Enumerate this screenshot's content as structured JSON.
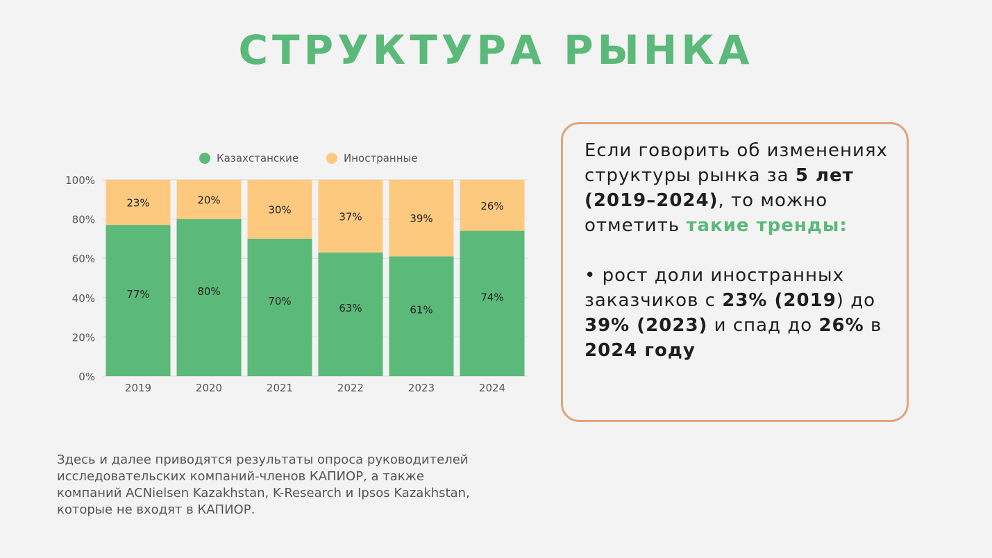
{
  "title": "СТРУКТУРА РЫНКА",
  "chart_data": {
    "type": "bar",
    "stacked": true,
    "categories": [
      "2019",
      "2020",
      "2021",
      "2022",
      "2023",
      "2024"
    ],
    "series": [
      {
        "name": "Казахстанские",
        "values": [
          77,
          80,
          70,
          63,
          61,
          74
        ],
        "color": "#5bb97a"
      },
      {
        "name": "Иностранные",
        "values": [
          23,
          20,
          30,
          37,
          39,
          26
        ],
        "color": "#fdc97f"
      }
    ],
    "data_labels": {
      "Казахстанские": [
        "77%",
        "80%",
        "70%",
        "63%",
        "61%",
        "74%"
      ],
      "Иностранные": [
        "23%",
        "20%",
        "30%",
        "37%",
        "39%",
        "26%"
      ]
    },
    "yticks": [
      "0%",
      "20%",
      "40%",
      "60%",
      "80%",
      "100%"
    ],
    "ylim": [
      0,
      100
    ],
    "legend_position": "top",
    "grid": true
  },
  "info": {
    "p1_a": "Если говорить об изменениях структуры рынка за ",
    "p1_b": "5 лет (2019–2024)",
    "p1_c": ", то можно отметить ",
    "p1_d": "такие тренды:",
    "p2_a": "• рост доли иностранных заказчиков с ",
    "p2_b": "23% (2019",
    "p2_c": ") до ",
    "p2_d": "39% (2023)",
    "p2_e": " и спад до ",
    "p2_f": "26%",
    "p2_g": " в ",
    "p2_h": "2024 году"
  },
  "footnote": [
    "Здесь и далее приводятся результаты опроса руководителей",
    "исследовательских компаний-членов КАПИОР, а также",
    "компаний ACNielsen Kazakhstan, K-Research и Ipsos Kazakhstan,",
    "которые не входят в КАПИОР."
  ]
}
